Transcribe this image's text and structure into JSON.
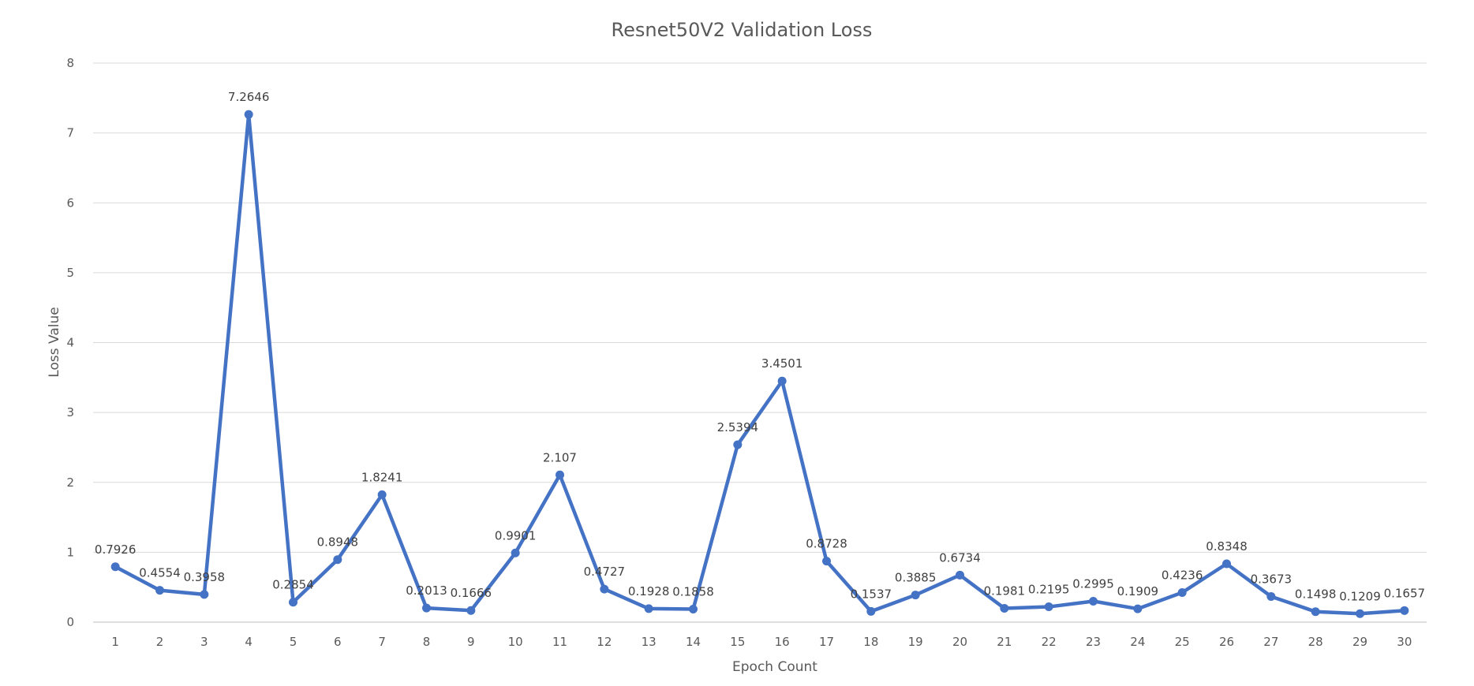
{
  "chart_data": {
    "type": "line",
    "title": "Resnet50V2 Validation Loss",
    "xlabel": "Epoch Count",
    "ylabel": "Loss Value",
    "ylim": [
      0,
      8
    ],
    "yticks": [
      0,
      1,
      2,
      3,
      4,
      5,
      6,
      7,
      8
    ],
    "grid": true,
    "legend": "none",
    "x": [
      1,
      2,
      3,
      4,
      5,
      6,
      7,
      8,
      9,
      10,
      11,
      12,
      13,
      14,
      15,
      16,
      17,
      18,
      19,
      20,
      21,
      22,
      23,
      24,
      25,
      26,
      27,
      28,
      29,
      30
    ],
    "series": [
      {
        "color": "#4472c4",
        "values": [
          0.7926,
          0.4554,
          0.3958,
          7.2646,
          0.2854,
          0.8948,
          1.8241,
          0.2013,
          0.1666,
          0.9901,
          2.107,
          0.4727,
          0.1928,
          0.1858,
          2.5394,
          3.4501,
          0.8728,
          0.1537,
          0.3885,
          0.6734,
          0.1981,
          0.2195,
          0.2995,
          0.1909,
          0.4236,
          0.8348,
          0.3673,
          0.1498,
          0.1209,
          0.1657
        ],
        "labels": [
          "0.7926",
          "0.4554",
          "0.3958",
          "7.2646",
          "0.2854",
          "0.8948",
          "1.8241",
          "0.2013",
          "0.1666",
          "0.9901",
          "2.107",
          "0.4727",
          "0.1928",
          "0.1858",
          "2.5394",
          "3.4501",
          "0.8728",
          "0.1537",
          "0.3885",
          "0.6734",
          "0.1981",
          "0.2195",
          "0.2995",
          "0.1909",
          "0.4236",
          "0.8348",
          "0.3673",
          "0.1498",
          "0.1209",
          "0.1657"
        ]
      }
    ]
  }
}
